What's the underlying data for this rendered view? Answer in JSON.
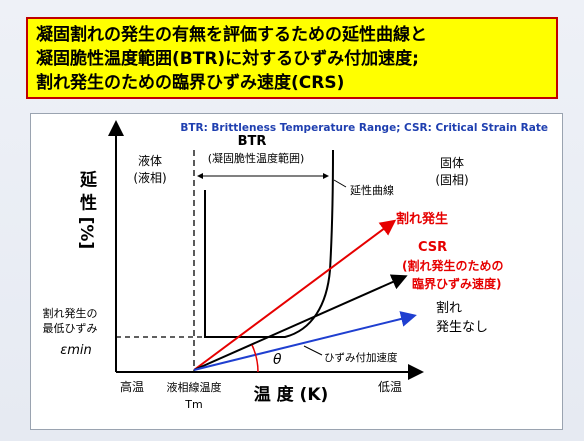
{
  "title": {
    "line1": "凝固割れの発生の有無を評価するための延性曲線と",
    "line2": "凝固脆性温度範囲(BTR)に対するひずみ付加速度;",
    "line3": "割れ発生のための臨界ひずみ速度(CRS)"
  },
  "legend_note": "BTR: Brittleness Temperature Range; CSR: Critical Strain Rate",
  "colors": {
    "title_bg": "#ffff00",
    "title_border": "#c00000",
    "red_line": "#e60000",
    "blue_line": "#1f3fd0",
    "note_text": "#1f3fb0"
  },
  "diagram": {
    "y_axis_label": "延 性 [%]",
    "x_axis_label": "温 度 (K)",
    "x_high": "高温",
    "x_low": "低温",
    "liquidus_label": "液相線温度",
    "tm_label": "Tm",
    "liquid_label_1": "液体",
    "liquid_label_2": "(液相)",
    "solid_label_1": "固体",
    "solid_label_2": "(固相)",
    "btr_label": "BTR",
    "btr_sub": "(凝固脆性温度範囲)",
    "ductility_curve_label": "延性曲線",
    "crack_label": "割れ発生",
    "csr_label": "CSR",
    "csr_sub1": "(割れ発生のための",
    "csr_sub2": "臨界ひずみ速度)",
    "no_crack_1": "割れ",
    "no_crack_2": "発生なし",
    "min_strain_1": "割れ発生の",
    "min_strain_2": "最低ひずみ",
    "epsilon_min": "εmin",
    "theta": "θ",
    "strain_rate_label": "ひずみ付加速度"
  }
}
